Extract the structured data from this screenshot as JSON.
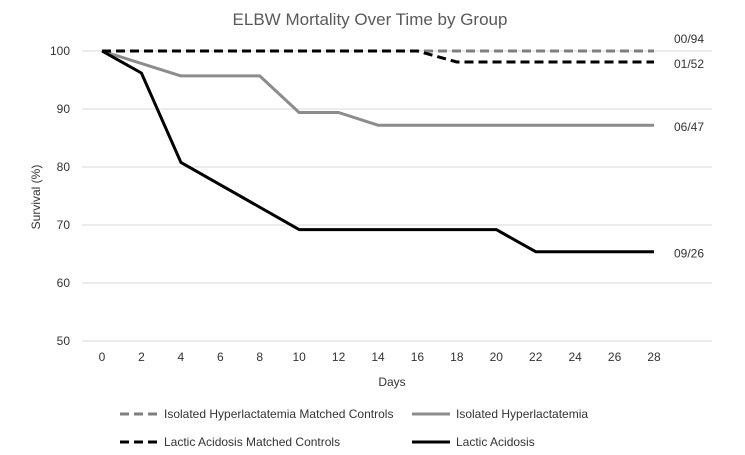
{
  "chart_data": {
    "type": "line",
    "title": "ELBW Mortality Over Time by Group",
    "xlabel": "Days",
    "ylabel": "Survival (%)",
    "xlim": [
      0,
      28
    ],
    "ylim": [
      50,
      100
    ],
    "x_ticks": [
      0,
      2,
      4,
      6,
      8,
      10,
      12,
      14,
      16,
      18,
      20,
      22,
      24,
      26,
      28
    ],
    "y_ticks": [
      50,
      60,
      70,
      80,
      90,
      100
    ],
    "grid": "horizontal",
    "legend_position": "bottom",
    "series": [
      {
        "name": "Isolated Hyperlactatemia Matched Controls",
        "color": "#7f7f7f",
        "dash": "dashed",
        "end_label": "00/94",
        "points": [
          [
            0,
            100
          ],
          [
            28,
            100
          ]
        ]
      },
      {
        "name": "Isolated Hyperlactatemia",
        "color": "#8c8c8c",
        "dash": "solid",
        "end_label": "06/47",
        "points": [
          [
            0,
            100
          ],
          [
            4,
            95.7
          ],
          [
            8,
            95.7
          ],
          [
            10,
            89.4
          ],
          [
            12,
            89.4
          ],
          [
            14,
            87.2
          ],
          [
            28,
            87.2
          ]
        ]
      },
      {
        "name": "Lactic Acidosis Matched Controls",
        "color": "#000000",
        "dash": "dashed",
        "end_label": "01/52",
        "points": [
          [
            0,
            100
          ],
          [
            16,
            100
          ],
          [
            18,
            98.1
          ],
          [
            28,
            98.1
          ]
        ]
      },
      {
        "name": "Lactic Acidosis",
        "color": "#000000",
        "dash": "solid",
        "end_label": "09/26",
        "points": [
          [
            0,
            100
          ],
          [
            2,
            96.2
          ],
          [
            4,
            80.8
          ],
          [
            10,
            69.2
          ],
          [
            20,
            69.2
          ],
          [
            22,
            65.4
          ],
          [
            28,
            65.4
          ]
        ]
      }
    ]
  }
}
